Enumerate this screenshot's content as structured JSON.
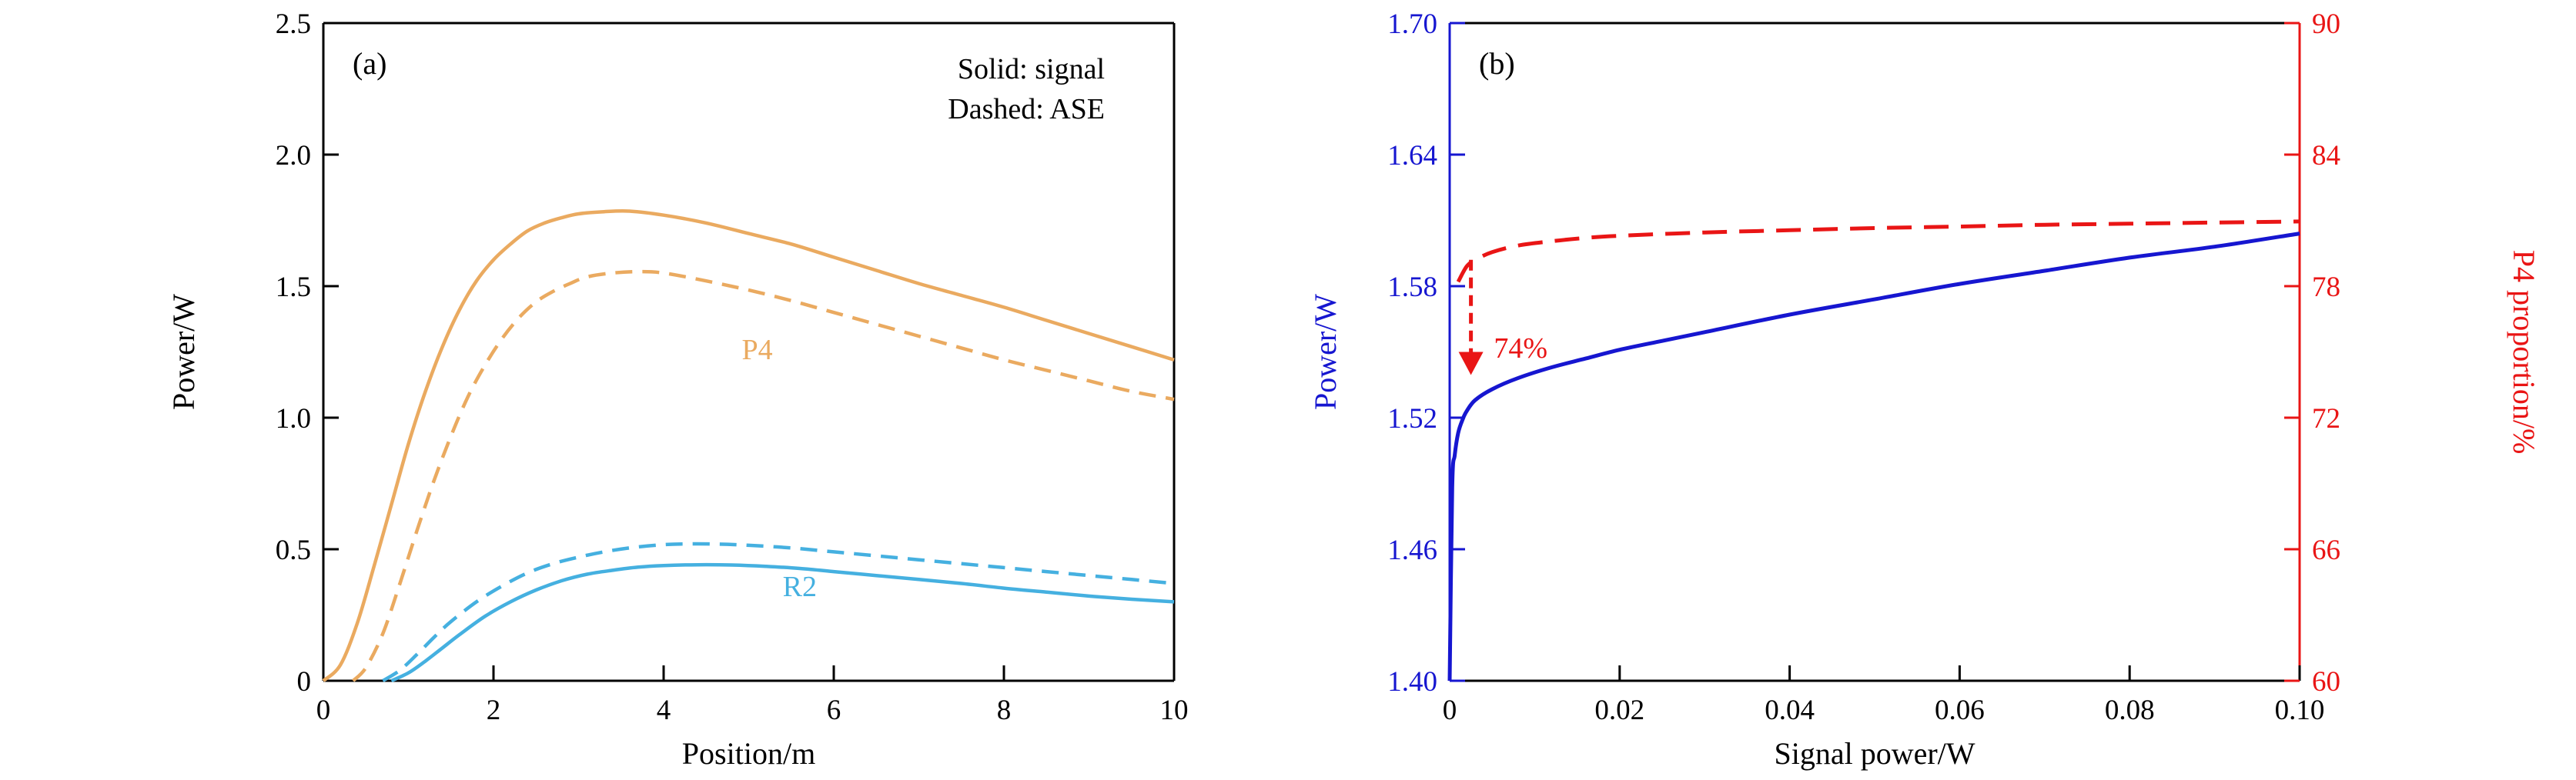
{
  "figure": {
    "background": "#ffffff"
  },
  "chart_data": [
    {
      "id": "a",
      "type": "line",
      "panel_label": "(a)",
      "xlabel": "Position/m",
      "ylabel": "Power/W",
      "xlim": [
        0,
        10
      ],
      "ylim": [
        0,
        2.5
      ],
      "xticks": [
        0,
        2,
        4,
        6,
        8,
        10
      ],
      "xtick_labels": [
        "0",
        "2",
        "4",
        "6",
        "8",
        "10"
      ],
      "yticks": [
        0,
        0.5,
        1.0,
        1.5,
        2.0,
        2.5
      ],
      "ytick_labels": [
        "0",
        "0.5",
        "1.0",
        "1.5",
        "2.0",
        "2.5"
      ],
      "legend_note": [
        "Solid: signal",
        "Dashed: ASE"
      ],
      "series": [
        {
          "name": "P4 signal",
          "style": "solid",
          "color": "#eaaa60",
          "x": [
            0,
            0.2,
            0.4,
            0.6,
            0.8,
            1.0,
            1.2,
            1.4,
            1.6,
            1.8,
            2.0,
            2.2,
            2.4,
            2.6,
            2.8,
            3.0,
            3.3,
            3.6,
            4.0,
            4.5,
            5.0,
            5.5,
            6.0,
            6.5,
            7.0,
            7.5,
            8.0,
            8.5,
            9.0,
            9.5,
            10
          ],
          "y": [
            0,
            0.06,
            0.22,
            0.44,
            0.67,
            0.9,
            1.1,
            1.27,
            1.41,
            1.52,
            1.6,
            1.66,
            1.71,
            1.74,
            1.76,
            1.775,
            1.783,
            1.785,
            1.77,
            1.74,
            1.7,
            1.66,
            1.61,
            1.56,
            1.51,
            1.465,
            1.42,
            1.37,
            1.32,
            1.27,
            1.22
          ]
        },
        {
          "name": "P4 ASE",
          "style": "dashed",
          "color": "#eaaa60",
          "dash": "22 13",
          "x": [
            0.35,
            0.5,
            0.7,
            0.9,
            1.1,
            1.3,
            1.5,
            1.7,
            1.9,
            2.1,
            2.3,
            2.5,
            2.7,
            2.9,
            3.1,
            3.4,
            3.7,
            4.0,
            4.5,
            5.0,
            5.5,
            6.0,
            6.5,
            7.0,
            7.5,
            8.0,
            8.5,
            9.0,
            9.5,
            10
          ],
          "y": [
            0,
            0.05,
            0.18,
            0.37,
            0.57,
            0.76,
            0.93,
            1.08,
            1.2,
            1.3,
            1.38,
            1.44,
            1.48,
            1.51,
            1.535,
            1.55,
            1.555,
            1.55,
            1.52,
            1.485,
            1.445,
            1.4,
            1.355,
            1.31,
            1.265,
            1.22,
            1.18,
            1.14,
            1.1,
            1.07
          ]
        },
        {
          "name": "R2 ASE",
          "style": "dashed",
          "color": "#45b0e0",
          "dash": "22 13",
          "x": [
            0.7,
            0.9,
            1.1,
            1.3,
            1.5,
            1.8,
            2.1,
            2.4,
            2.7,
            3.0,
            3.3,
            3.6,
            3.9,
            4.2,
            4.6,
            5.0,
            5.5,
            6.0,
            6.5,
            7.0,
            7.5,
            8.0,
            8.5,
            9.0,
            9.5,
            10
          ],
          "y": [
            0,
            0.04,
            0.1,
            0.165,
            0.225,
            0.3,
            0.36,
            0.41,
            0.445,
            0.47,
            0.49,
            0.505,
            0.515,
            0.52,
            0.52,
            0.515,
            0.505,
            0.49,
            0.475,
            0.46,
            0.445,
            0.43,
            0.415,
            0.4,
            0.385,
            0.37
          ]
        },
        {
          "name": "R2 signal",
          "style": "solid",
          "color": "#45b0e0",
          "x": [
            0.8,
            1.0,
            1.2,
            1.4,
            1.6,
            1.9,
            2.2,
            2.5,
            2.8,
            3.1,
            3.4,
            3.7,
            4.0,
            4.4,
            4.8,
            5.2,
            5.6,
            6.0,
            6.5,
            7.0,
            7.5,
            8.0,
            8.5,
            9.0,
            9.5,
            10
          ],
          "y": [
            0,
            0.03,
            0.075,
            0.125,
            0.175,
            0.245,
            0.3,
            0.345,
            0.38,
            0.405,
            0.42,
            0.432,
            0.438,
            0.441,
            0.44,
            0.435,
            0.427,
            0.415,
            0.4,
            0.385,
            0.37,
            0.352,
            0.337,
            0.322,
            0.31,
            0.3
          ]
        }
      ],
      "curve_labels": [
        {
          "text": "P4",
          "x": 5.1,
          "y": 1.26,
          "color": "#eaaa60"
        },
        {
          "text": "R2",
          "x": 5.6,
          "y": 0.36,
          "color": "#45b0e0"
        }
      ]
    },
    {
      "id": "b",
      "type": "line",
      "panel_label": "(b)",
      "xlabel": "Signal power/W",
      "ylabel_left": "Power/W",
      "ylabel_right": "P4 proportion/%",
      "left_color": "#1616d0",
      "right_color": "#e91515",
      "xlim": [
        0,
        0.1
      ],
      "ylim_left": [
        1.4,
        1.7
      ],
      "ylim_right": [
        60,
        90
      ],
      "xticks": [
        0,
        0.02,
        0.04,
        0.06,
        0.08,
        0.1
      ],
      "xtick_labels": [
        "0",
        "0.02",
        "0.04",
        "0.06",
        "0.08",
        "0.10"
      ],
      "yticks_left": [
        1.4,
        1.46,
        1.52,
        1.58,
        1.64,
        1.7
      ],
      "ytick_labels_left": [
        "1.40",
        "1.46",
        "1.52",
        "1.58",
        "1.64",
        "1.70"
      ],
      "yticks_right": [
        60,
        66,
        72,
        78,
        84,
        90
      ],
      "ytick_labels_right": [
        "60",
        "66",
        "72",
        "78",
        "84",
        "90"
      ],
      "series": [
        {
          "name": "signal power out",
          "axis": "left",
          "style": "solid",
          "color": "#1616d0",
          "x": [
            0,
            0.0003,
            0.0006,
            0.001,
            0.0015,
            0.002,
            0.003,
            0.005,
            0.008,
            0.012,
            0.016,
            0.02,
            0.025,
            0.03,
            0.04,
            0.05,
            0.06,
            0.07,
            0.08,
            0.09,
            0.1
          ],
          "y": [
            1.4,
            1.488,
            1.503,
            1.513,
            1.519,
            1.523,
            1.528,
            1.533,
            1.538,
            1.543,
            1.547,
            1.551,
            1.555,
            1.559,
            1.567,
            1.574,
            1.581,
            1.587,
            1.593,
            1.598,
            1.604
          ]
        },
        {
          "name": "P4 proportion",
          "axis": "right",
          "style": "dashed",
          "color": "#e91515",
          "dash": "32 16",
          "x": [
            0.001,
            0.002,
            0.003,
            0.005,
            0.008,
            0.012,
            0.016,
            0.02,
            0.03,
            0.04,
            0.05,
            0.06,
            0.07,
            0.08,
            0.09,
            0.1
          ],
          "y": [
            78.2,
            78.9,
            79.2,
            79.55,
            79.85,
            80.05,
            80.2,
            80.3,
            80.45,
            80.55,
            80.65,
            80.72,
            80.8,
            80.85,
            80.9,
            80.95
          ]
        }
      ],
      "annotation": {
        "text": "74%",
        "color": "#e91515",
        "axis": "right",
        "arrow_x": 0.0025,
        "arrow_y_from": 79.2,
        "arrow_y_to": 75.0,
        "text_x": 0.0052,
        "text_y": 75.2
      }
    }
  ]
}
